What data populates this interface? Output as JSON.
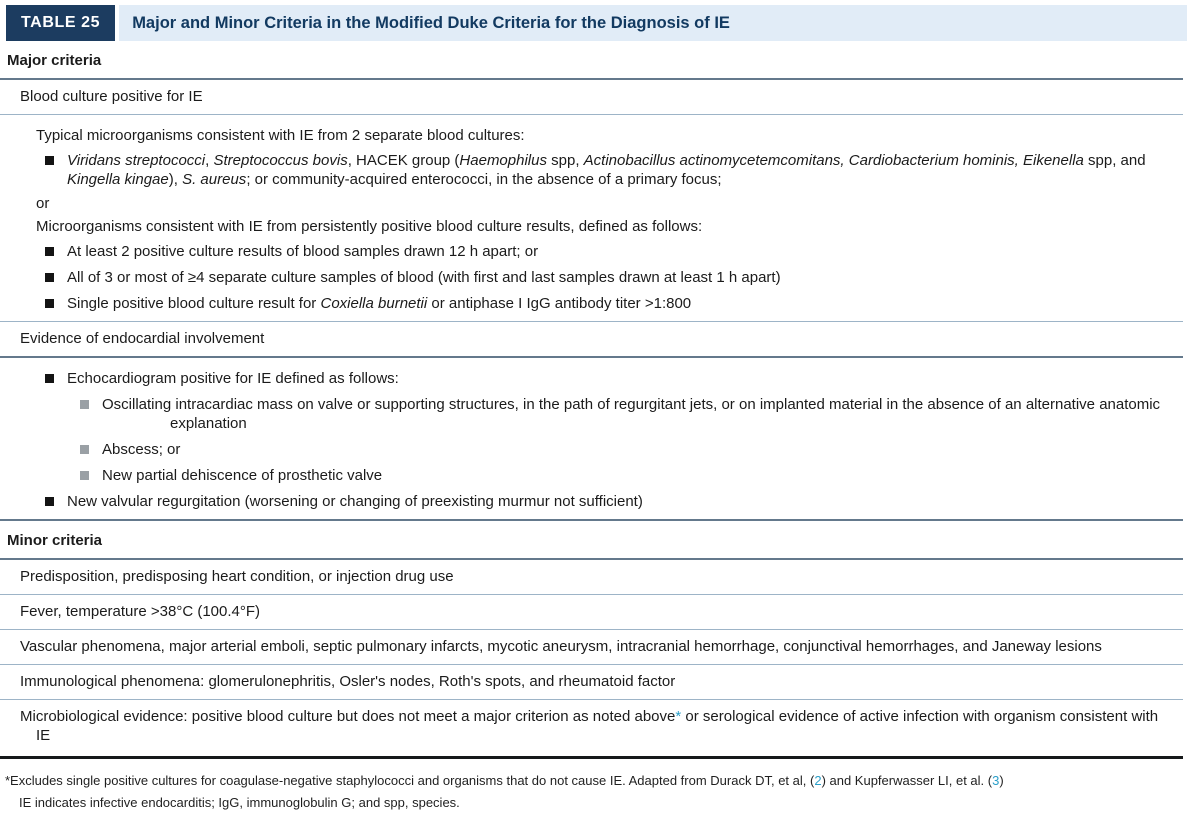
{
  "table": {
    "badge": "TABLE 25",
    "title": "Major and Minor Criteria in the Modified Duke Criteria for the Diagnosis of IE",
    "rows": [
      {
        "kind": "section",
        "text": "Major criteria",
        "rule": "dark"
      },
      {
        "kind": "item",
        "text": "Blood culture positive for IE",
        "rule": "light"
      },
      {
        "kind": "plain",
        "gap": true,
        "text": "Typical microorganisms consistent with IE from 2 separate blood cultures:"
      },
      {
        "kind": "bullet",
        "segments": [
          {
            "t": "Viridans streptococci",
            "i": true
          },
          {
            "t": ", "
          },
          {
            "t": "Streptococcus bovis",
            "i": true
          },
          {
            "t": ", HACEK group ("
          },
          {
            "t": "Haemophilus",
            "i": true
          },
          {
            "t": " spp, "
          },
          {
            "t": "Actinobacillus actinomycetemcomitans, Cardiobacterium hominis, Eikenella",
            "i": true
          },
          {
            "t": " spp, and "
          },
          {
            "t": "Kingella kingae",
            "i": true
          },
          {
            "t": "), "
          },
          {
            "t": "S. aureus",
            "i": true
          },
          {
            "t": "; or community-acquired enterococci, in the absence of a primary focus;"
          }
        ]
      },
      {
        "kind": "plain",
        "tight": true,
        "text": "or"
      },
      {
        "kind": "plain",
        "text": "Microorganisms consistent with IE from persistently positive blood culture results, defined as follows:"
      },
      {
        "kind": "bullet",
        "text": "At least 2 positive culture results of blood samples drawn 12 h apart; or"
      },
      {
        "kind": "bullet",
        "text": "All of 3 or most of ≥4 separate culture samples of blood (with first and last samples drawn at least 1 h apart)"
      },
      {
        "kind": "bullet",
        "rule": "light",
        "segments": [
          {
            "t": "Single positive blood culture result for "
          },
          {
            "t": "Coxiella burnetii",
            "i": true
          },
          {
            "t": " or antiphase I IgG antibody titer >1:800"
          }
        ]
      },
      {
        "kind": "item",
        "text": "Evidence of endocardial involvement",
        "rule": "dark"
      },
      {
        "kind": "bullet",
        "gap": true,
        "text": "Echocardiogram positive for IE defined as follows:"
      },
      {
        "kind": "subbullet",
        "hang": true,
        "text": "Oscillating intracardiac mass on valve or supporting structures, in the path of regurgitant jets, or on implanted material in the absence of an alternative anatomic explanation"
      },
      {
        "kind": "subbullet",
        "text": "Abscess; or"
      },
      {
        "kind": "subbullet",
        "text": "New partial dehiscence of prosthetic valve"
      },
      {
        "kind": "bullet",
        "rule": "dark",
        "text": "New valvular regurgitation (worsening or changing of preexisting murmur not sufficient)"
      },
      {
        "kind": "section",
        "text": "Minor criteria",
        "rule": "dark"
      },
      {
        "kind": "item",
        "rule": "light",
        "text": "Predisposition, predisposing heart condition, or injection drug use"
      },
      {
        "kind": "item",
        "rule": "light",
        "text": "Fever, temperature >38°C (100.4°F)"
      },
      {
        "kind": "item",
        "rule": "light",
        "text": "Vascular phenomena, major arterial emboli, septic pulmonary infarcts, mycotic aneurysm, intracranial hemorrhage, conjunctival hemorrhages, and Janeway lesions"
      },
      {
        "kind": "item",
        "rule": "light",
        "text": "Immunological phenomena: glomerulonephritis, Osler's nodes, Roth's spots, and rheumatoid factor"
      },
      {
        "kind": "item",
        "rule": "thick",
        "hang2": true,
        "segments": [
          {
            "t": "Microbiological evidence: positive blood culture but does not meet a major criterion as noted above"
          },
          {
            "t": "*",
            "link": true
          },
          {
            "t": " or serological evidence of active infection with organism consistent with IE"
          }
        ]
      }
    ],
    "footnotes": [
      {
        "segments": [
          {
            "t": "*Excludes single positive cultures for coagulase-negative staphylococci and organisms that do not cause IE. Adapted from Durack DT, et al, ("
          },
          {
            "t": "2",
            "link": true
          },
          {
            "t": ") and Kupferwasser LI, et al. ("
          },
          {
            "t": "3",
            "link": true
          },
          {
            "t": ")"
          }
        ]
      },
      {
        "indent": true,
        "segments": [
          {
            "t": "IE indicates infective endocarditis; IgG, immunoglobulin G; and spp, species."
          }
        ]
      }
    ],
    "colors": {
      "badge_navy": "#1c3c60",
      "banner_blue": "#e1ecf7",
      "title_navy": "#123a61",
      "link_teal": "#2b9fc9",
      "rule_light": "#9db4c7",
      "rule_dark": "#64798c",
      "rule_thick": "#16181a",
      "subbullet_gray": "#9aa0a5",
      "body_text": "#1b1b1b"
    }
  }
}
